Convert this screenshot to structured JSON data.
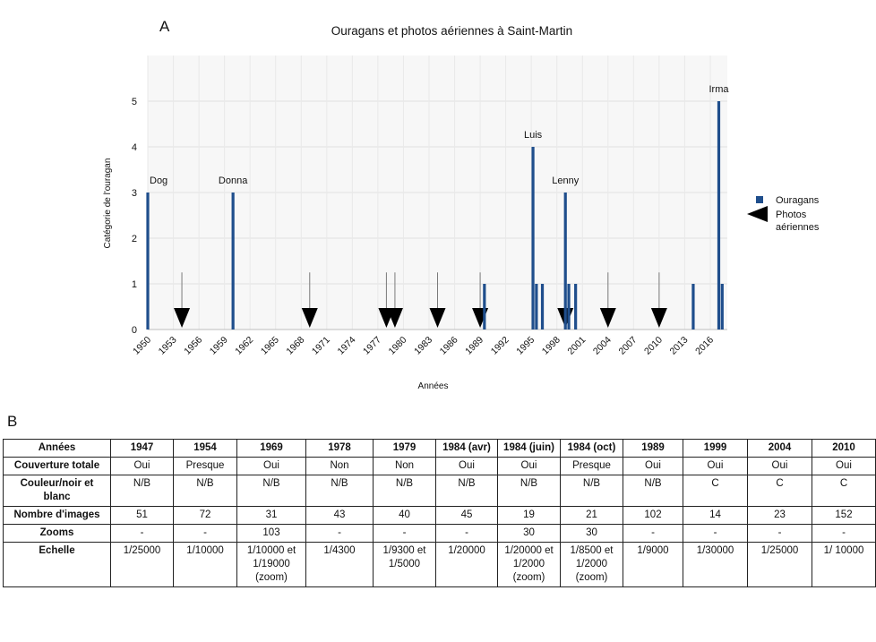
{
  "panels": {
    "a_label": "A",
    "b_label": "B"
  },
  "chart_data": {
    "type": "bar",
    "title": "Ouragans et photos aériennes à Saint-Martin",
    "xlabel": "Années",
    "ylabel": "Catégorie de l'ouragan",
    "xlim": [
      1950,
      2018
    ],
    "ylim": [
      0,
      6
    ],
    "yticks": [
      0,
      1,
      2,
      3,
      4,
      5
    ],
    "xticks": [
      1950,
      1953,
      1956,
      1959,
      1962,
      1965,
      1968,
      1971,
      1974,
      1977,
      1980,
      1983,
      1986,
      1989,
      1992,
      1995,
      1998,
      2001,
      2004,
      2007,
      2010,
      2013,
      2016
    ],
    "grid": true,
    "legend_position": "right",
    "series": [
      {
        "name": "Ouragans",
        "color": "#1f4e8c",
        "points": [
          {
            "x": 1950,
            "y": 3,
            "label": "Dog"
          },
          {
            "x": 1960,
            "y": 3,
            "label": "Donna"
          },
          {
            "x": 1989.5,
            "y": 1,
            "label": ""
          },
          {
            "x": 1995.2,
            "y": 4,
            "label": "Luis"
          },
          {
            "x": 1995.6,
            "y": 1,
            "label": ""
          },
          {
            "x": 1996.3,
            "y": 1,
            "label": ""
          },
          {
            "x": 1999,
            "y": 3,
            "label": "Lenny"
          },
          {
            "x": 1999.4,
            "y": 1,
            "label": ""
          },
          {
            "x": 2000.2,
            "y": 1,
            "label": ""
          },
          {
            "x": 2014,
            "y": 1,
            "label": ""
          },
          {
            "x": 2017,
            "y": 5,
            "label": "Irma"
          },
          {
            "x": 2017.4,
            "y": 1,
            "label": ""
          }
        ]
      },
      {
        "name": "Photos aériennes",
        "marker": "arrow-down",
        "color": "#000000",
        "x": [
          1954,
          1969,
          1978,
          1979,
          1984,
          1989,
          1999,
          2004,
          2010
        ]
      }
    ]
  },
  "table": {
    "headers": [
      "Années",
      "1947",
      "1954",
      "1969",
      "1978",
      "1979",
      "1984 (avr)",
      "1984 (juin)",
      "1984 (oct)",
      "1989",
      "1999",
      "2004",
      "2010"
    ],
    "rows": [
      {
        "label": "Couverture totale",
        "cells": [
          "Oui",
          "Presque",
          "Oui",
          "Non",
          "Non",
          "Oui",
          "Oui",
          "Presque",
          "Oui",
          "Oui",
          "Oui",
          "Oui"
        ]
      },
      {
        "label": "Couleur/noir et blanc",
        "cells": [
          "N/B",
          "N/B",
          "N/B",
          "N/B",
          "N/B",
          "N/B",
          "N/B",
          "N/B",
          "N/B",
          "C",
          "C",
          "C"
        ]
      },
      {
        "label": "Nombre d'images",
        "cells": [
          "51",
          "72",
          "31",
          "43",
          "40",
          "45",
          "19",
          "21",
          "102",
          "14",
          "23",
          "152"
        ]
      },
      {
        "label": "Zooms",
        "cells": [
          "-",
          "-",
          "103",
          "-",
          "-",
          "-",
          "30",
          "30",
          "-",
          "-",
          "-",
          "-"
        ]
      },
      {
        "label": "Echelle",
        "cells": [
          "1/25000",
          "1/10000",
          "1/10000 et 1/19000 (zoom)",
          "1/4300",
          "1/9300 et 1/5000",
          "1/20000",
          "1/20000 et 1/2000 (zoom)",
          "1/8500 et 1/2000 (zoom)",
          "1/9000",
          "1/30000",
          "1/25000",
          "1/ 10000"
        ]
      }
    ]
  }
}
